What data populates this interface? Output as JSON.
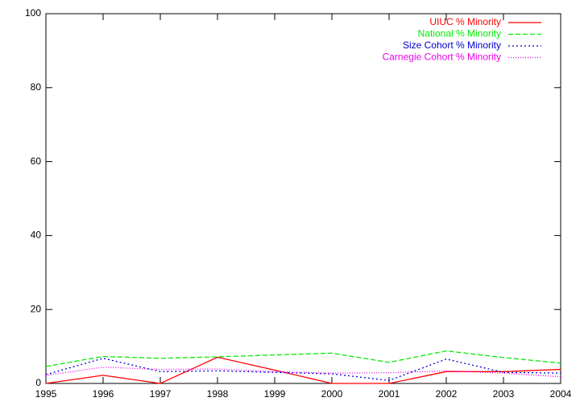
{
  "chart_data": {
    "type": "line",
    "x": [
      1995,
      1996,
      1997,
      1998,
      1999,
      2000,
      2001,
      2002,
      2003,
      2004
    ],
    "xlim": [
      1995,
      2004
    ],
    "xticks": [
      1995,
      1996,
      1997,
      1998,
      1999,
      2000,
      2001,
      2002,
      2003,
      2004
    ],
    "ylim": [
      0,
      100
    ],
    "yticks": [
      0,
      20,
      40,
      60,
      80,
      100
    ],
    "grid": false,
    "legend": "top-right",
    "series": [
      {
        "name": "UIUC % Minority",
        "color": "#ff0000",
        "style": "solid",
        "values": [
          0,
          2.2,
          0,
          7.1,
          3.6,
          0,
          0,
          3.2,
          3.2,
          3.8
        ]
      },
      {
        "name": "National % Minority",
        "color": "#00ee00",
        "style": "dashed",
        "values": [
          4.6,
          7.3,
          6.8,
          7.2,
          7.7,
          8.2,
          5.7,
          8.8,
          7.0,
          5.5
        ]
      },
      {
        "name": "Size Cohort % Minority",
        "color": "#0000cc",
        "style": "dotted",
        "values": [
          2.4,
          6.8,
          3.2,
          3.4,
          3.0,
          2.6,
          0.8,
          6.6,
          3.0,
          2.8
        ]
      },
      {
        "name": "Carnegie Cohort % Minority",
        "color": "#ee00ee",
        "style": "finedotted",
        "values": [
          2.2,
          4.4,
          3.8,
          3.9,
          3.2,
          2.8,
          2.9,
          3.4,
          2.8,
          1.8
        ]
      }
    ]
  }
}
